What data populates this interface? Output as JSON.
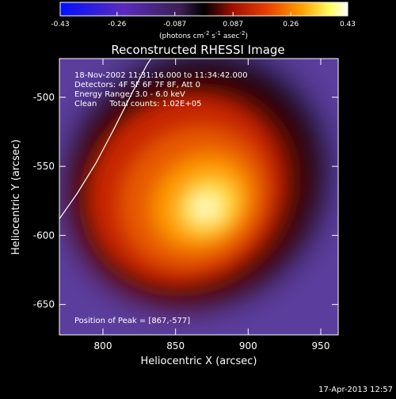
{
  "chart_data": {
    "type": "heatmap",
    "title": "Reconstructed RHESSI Image",
    "xlabel": "Heliocentric X (arcsec)",
    "ylabel": "Heliocentric Y (arcsec)",
    "xlim": [
      770,
      962
    ],
    "ylim": [
      -672,
      -472
    ],
    "x_ticks": [
      800,
      850,
      900,
      950
    ],
    "y_ticks": [
      -500,
      -550,
      -600,
      -650
    ],
    "peak": [
      867,
      -577
    ],
    "peak_label": "Position of Peak = [867,-577]",
    "colorbar": {
      "range": [
        -0.43,
        0.43
      ],
      "ticks": [
        "-0.43",
        "-0.26",
        "-0.087",
        "0.087",
        "0.26",
        "0.43"
      ],
      "tick_values": [
        -0.43,
        -0.26,
        -0.087,
        0.087,
        0.26,
        0.43
      ],
      "unit_label_parts": [
        "(photons cm",
        "-2",
        " s",
        "-1",
        " asec",
        "-2",
        ")"
      ]
    },
    "annotations": [
      "18-Nov-2002 11:31:16.000 to 11:34:42.000",
      "Detectors: 4F 5F 6F 7F 8F, Att 0",
      "Energy Range: 3.0 - 6.0 keV",
      "Clean     Total counts: 1.02E+05"
    ],
    "limb_curve": [
      [
        770,
        -588
      ],
      [
        782,
        -570
      ],
      [
        795,
        -548
      ],
      [
        808,
        -522
      ],
      [
        820,
        -497
      ],
      [
        830,
        -477
      ],
      [
        833,
        -472
      ]
    ],
    "grid": false,
    "colormap": "blue-purple-black-red-orange-yellow-white",
    "colors": {
      "background": "#000000",
      "text": "#ffffff",
      "cmap_stops": [
        "#0000ff",
        "#5a2bbd",
        "#7a5bb0",
        "#000000",
        "#a01000",
        "#e84000",
        "#ffa000",
        "#ffff60",
        "#ffffff"
      ]
    }
  },
  "footer": {
    "timestamp": "17-Apr-2013 12:57"
  }
}
